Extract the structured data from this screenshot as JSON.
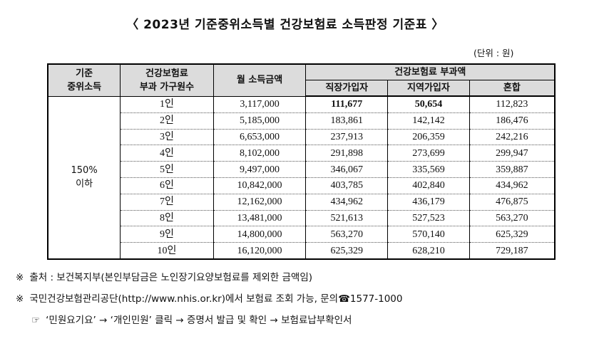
{
  "title": "〈 2023년 기준중위소득별 건강보험료 소득판정 기준표 〉",
  "unit": "(단위 : 원)",
  "table": {
    "headers": {
      "col1_line1": "기준",
      "col1_line2": "중위소득",
      "col2_line1": "건강보험료",
      "col2_line2": "부과 가구원수",
      "col3": "월 소득금액",
      "group": "건강보험료 부과액",
      "sub1": "직장가입자",
      "sub2": "지역가입자",
      "sub3": "혼합"
    },
    "group_label_line1": "150%",
    "group_label_line2": "이하",
    "rows": [
      {
        "household": "1인",
        "income": "3,117,000",
        "employee": "111,677",
        "regional": "50,654",
        "mixed": "112,823"
      },
      {
        "household": "2인",
        "income": "5,185,000",
        "employee": "183,861",
        "regional": "142,142",
        "mixed": "186,476"
      },
      {
        "household": "3인",
        "income": "6,653,000",
        "employee": "237,913",
        "regional": "206,359",
        "mixed": "242,216"
      },
      {
        "household": "4인",
        "income": "8,102,000",
        "employee": "291,898",
        "regional": "273,699",
        "mixed": "299,947"
      },
      {
        "household": "5인",
        "income": "9,497,000",
        "employee": "346,067",
        "regional": "335,569",
        "mixed": "359,887"
      },
      {
        "household": "6인",
        "income": "10,842,000",
        "employee": "403,785",
        "regional": "402,840",
        "mixed": "434,962"
      },
      {
        "household": "7인",
        "income": "12,162,000",
        "employee": "434,962",
        "regional": "436,179",
        "mixed": "476,875"
      },
      {
        "household": "8인",
        "income": "13,481,000",
        "employee": "521,613",
        "regional": "527,523",
        "mixed": "563,270"
      },
      {
        "household": "9인",
        "income": "14,800,000",
        "employee": "563,270",
        "regional": "570,140",
        "mixed": "625,329"
      },
      {
        "household": "10인",
        "income": "16,120,000",
        "employee": "625,329",
        "regional": "628,210",
        "mixed": "729,187"
      }
    ]
  },
  "notes": {
    "note1_mark": "※",
    "note1": "출처 : 보건복지부(본인부담금은 노인장기요양보험료를 제외한 금액임)",
    "note2_mark": "※",
    "note2": "국민건강보험관리공단(http://www.nhis.or.kr)에서 보험료 조회 가능, 문의☎1577-1000",
    "note3_mark": "☞",
    "note3": "‘민원요기요’ → ‘개인민원’ 클릭 → 증명서 발급 및 확인 → 보험료납부확인서"
  }
}
